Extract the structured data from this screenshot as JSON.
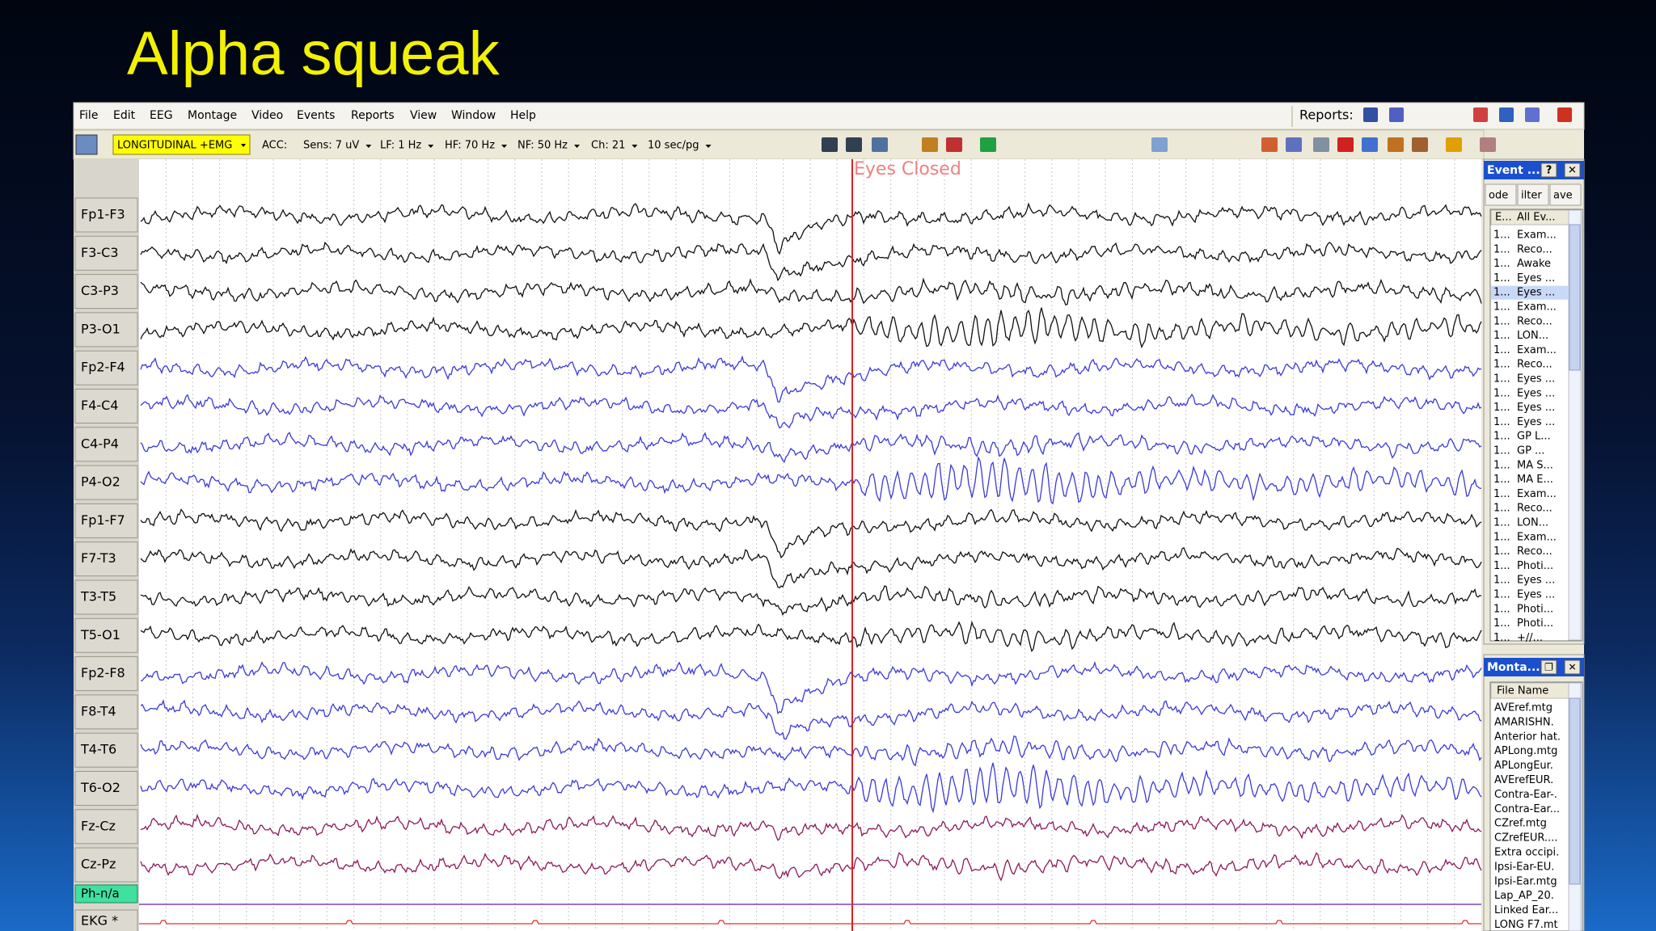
{
  "title": "Alpha squeak",
  "menu": [
    "File",
    "Edit",
    "EEG",
    "Montage",
    "Video",
    "Events",
    "Reports",
    "View",
    "Window",
    "Help"
  ],
  "reports_label": "Reports:",
  "toolbar": {
    "montage": "LONGITUDINAL +EMG",
    "acc": "ACC:",
    "sens": "Sens: 7 uV",
    "lf": "LF: 1 Hz",
    "hf": "HF: 70 Hz",
    "nf": "NF: 50 Hz",
    "ch": "Ch: 21",
    "speed": "10 sec/pg"
  },
  "annotation": "Eyes Closed",
  "channels": [
    {
      "label": "Fp1-F3",
      "color": "#111111"
    },
    {
      "label": "F3-C3",
      "color": "#111111"
    },
    {
      "label": "C3-P3",
      "color": "#111111"
    },
    {
      "label": "P3-O1",
      "color": "#111111"
    },
    {
      "label": "Fp2-F4",
      "color": "#3a3ad8"
    },
    {
      "label": "F4-C4",
      "color": "#3a3ad8"
    },
    {
      "label": "C4-P4",
      "color": "#3a3ad8"
    },
    {
      "label": "P4-O2",
      "color": "#3a3ad8"
    },
    {
      "label": "Fp1-F7",
      "color": "#111111"
    },
    {
      "label": "F7-T3",
      "color": "#111111"
    },
    {
      "label": "T3-T5",
      "color": "#111111"
    },
    {
      "label": "T5-O1",
      "color": "#111111"
    },
    {
      "label": "Fp2-F8",
      "color": "#3a3ad8"
    },
    {
      "label": "F8-T4",
      "color": "#3a3ad8"
    },
    {
      "label": "T4-T6",
      "color": "#3a3ad8"
    },
    {
      "label": "T6-O2",
      "color": "#3a3ad8"
    },
    {
      "label": "Fz-Cz",
      "color": "#8b1a5c"
    },
    {
      "label": "Cz-Pz",
      "color": "#8b1a5c"
    }
  ],
  "extra_channels": [
    {
      "label": "Ph-n/a",
      "color": "#8040c0"
    },
    {
      "label": "EKG *",
      "color": "#e03030"
    }
  ],
  "event_panel": {
    "title": "Event ...",
    "buttons": [
      "ode",
      "ilter",
      "ave"
    ],
    "columns": [
      "E...",
      "All Ev..."
    ],
    "rows": [
      [
        "1...",
        "Exam..."
      ],
      [
        "1...",
        "Reco..."
      ],
      [
        "1...",
        "Awake"
      ],
      [
        "1...",
        "Eyes ..."
      ],
      [
        "1...",
        "Eyes ..."
      ],
      [
        "1...",
        "Exam..."
      ],
      [
        "1...",
        "Reco..."
      ],
      [
        "1...",
        "LON..."
      ],
      [
        "1...",
        "Exam..."
      ],
      [
        "1...",
        "Reco..."
      ],
      [
        "1...",
        "Eyes ..."
      ],
      [
        "1...",
        "Eyes ..."
      ],
      [
        "1...",
        "Eyes ..."
      ],
      [
        "1...",
        "Eyes ..."
      ],
      [
        "1...",
        "GP L..."
      ],
      [
        "1...",
        "GP ..."
      ],
      [
        "1...",
        "MA S..."
      ],
      [
        "1...",
        "MA E..."
      ],
      [
        "1...",
        "Exam..."
      ],
      [
        "1...",
        "Reco..."
      ],
      [
        "1...",
        "LON..."
      ],
      [
        "1...",
        "Exam..."
      ],
      [
        "1...",
        "Reco..."
      ],
      [
        "1...",
        "Photi..."
      ],
      [
        "1...",
        "Eyes ..."
      ],
      [
        "1...",
        "Eyes ..."
      ],
      [
        "1...",
        "Photi..."
      ],
      [
        "1...",
        "Photi..."
      ],
      [
        "1...",
        "+//..."
      ]
    ]
  },
  "montage_panel": {
    "title": "Monta...",
    "column": "File Name",
    "files": [
      "AVEref.mtg",
      "AMARISHN.",
      "Anterior hat.",
      "APLong.mtg",
      "APLongEur.",
      "AVErefEUR.",
      "Contra-Ear-.",
      "Contra-Ear...",
      "CZref.mtg",
      "CZrefEUR....",
      "Extra occipi.",
      "Ipsi-Ear-EU.",
      "Ipsi-Ear.mtg",
      "Lap_AP_20.",
      "Linked Ear...",
      "LONG F7.mt"
    ]
  }
}
